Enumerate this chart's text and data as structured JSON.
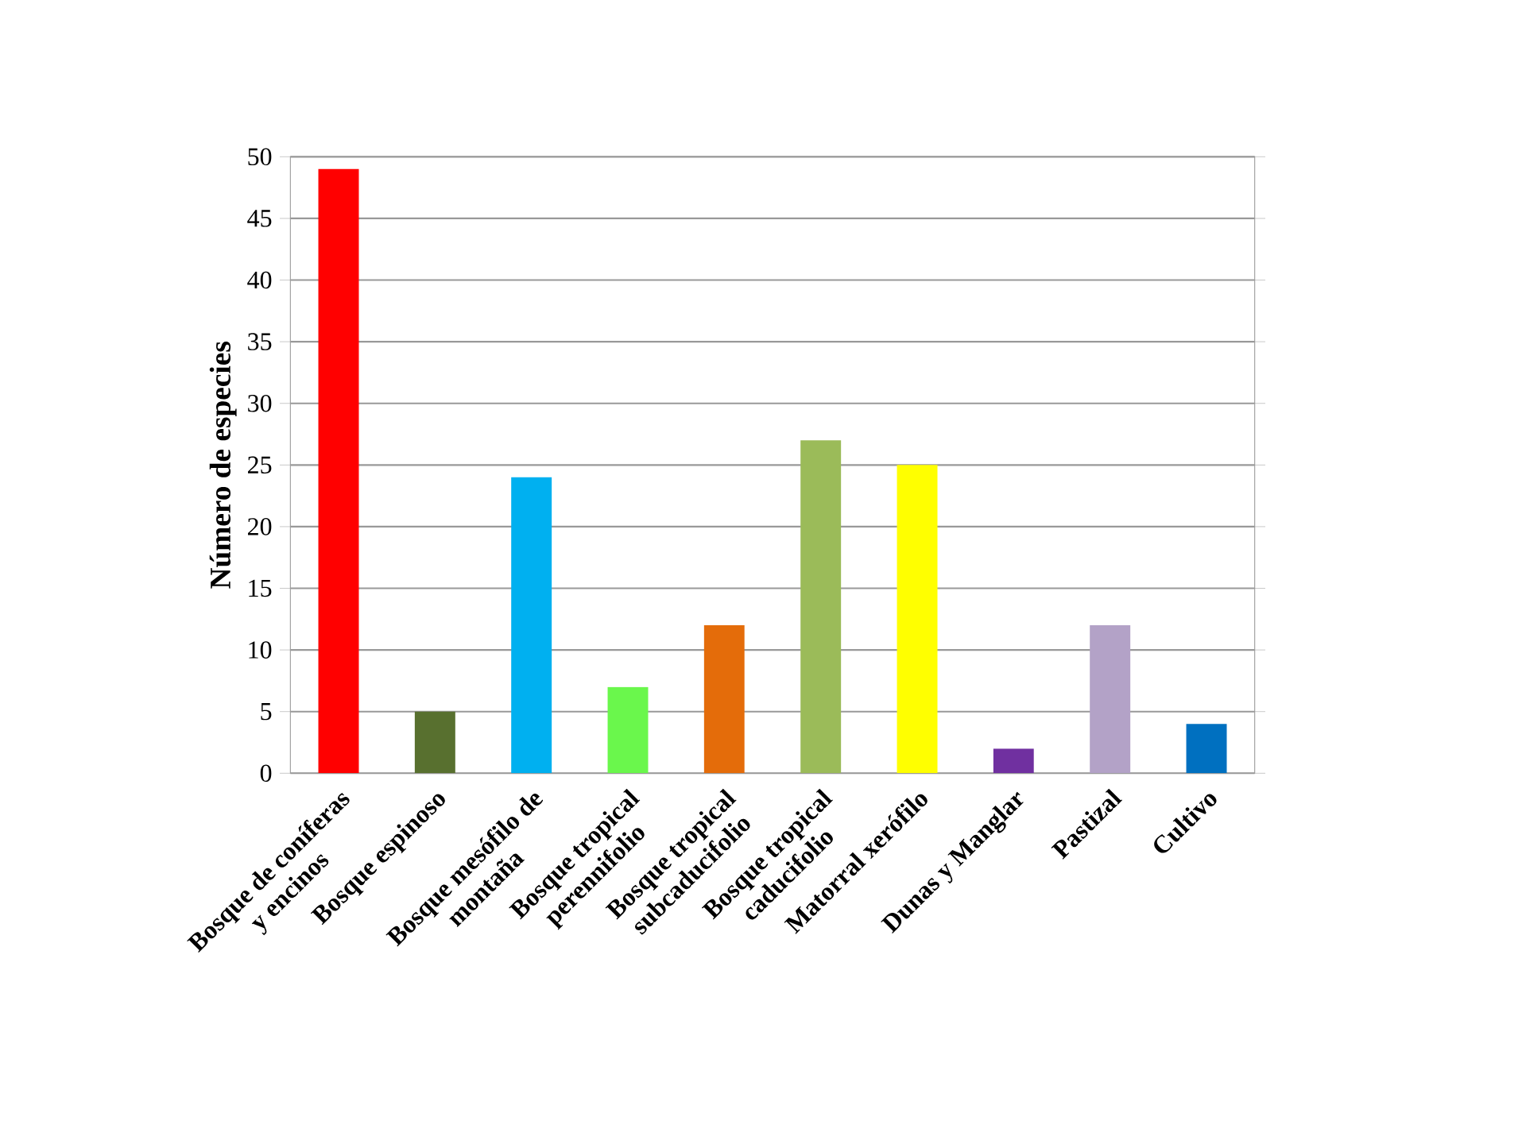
{
  "chart_data": {
    "type": "bar",
    "ylabel": "Número de especies",
    "categories": [
      "Bosque de coníferas y encinos",
      "Bosque espinoso",
      "Bosque mesófilo de montaña",
      "Bosque tropical perennifolio",
      "Bosque tropical subcaducifolio",
      "Bosque tropical caducifolio",
      "Matorral xerófilo",
      "Dunas y Manglar",
      "Pastizal",
      "Cultivo"
    ],
    "values": [
      49,
      5,
      24,
      7,
      12,
      27,
      25,
      2,
      12,
      4
    ],
    "colors": [
      "#ff0000",
      "#58702f",
      "#00b0f0",
      "#6af74c",
      "#e46c0a",
      "#9bbb59",
      "#ffff00",
      "#7030a0",
      "#b3a2c7",
      "#0070c0"
    ],
    "ylim": [
      0,
      50
    ],
    "yticks": [
      0,
      5,
      10,
      15,
      20,
      25,
      30,
      35,
      40,
      45,
      50
    ],
    "grid": "y"
  }
}
